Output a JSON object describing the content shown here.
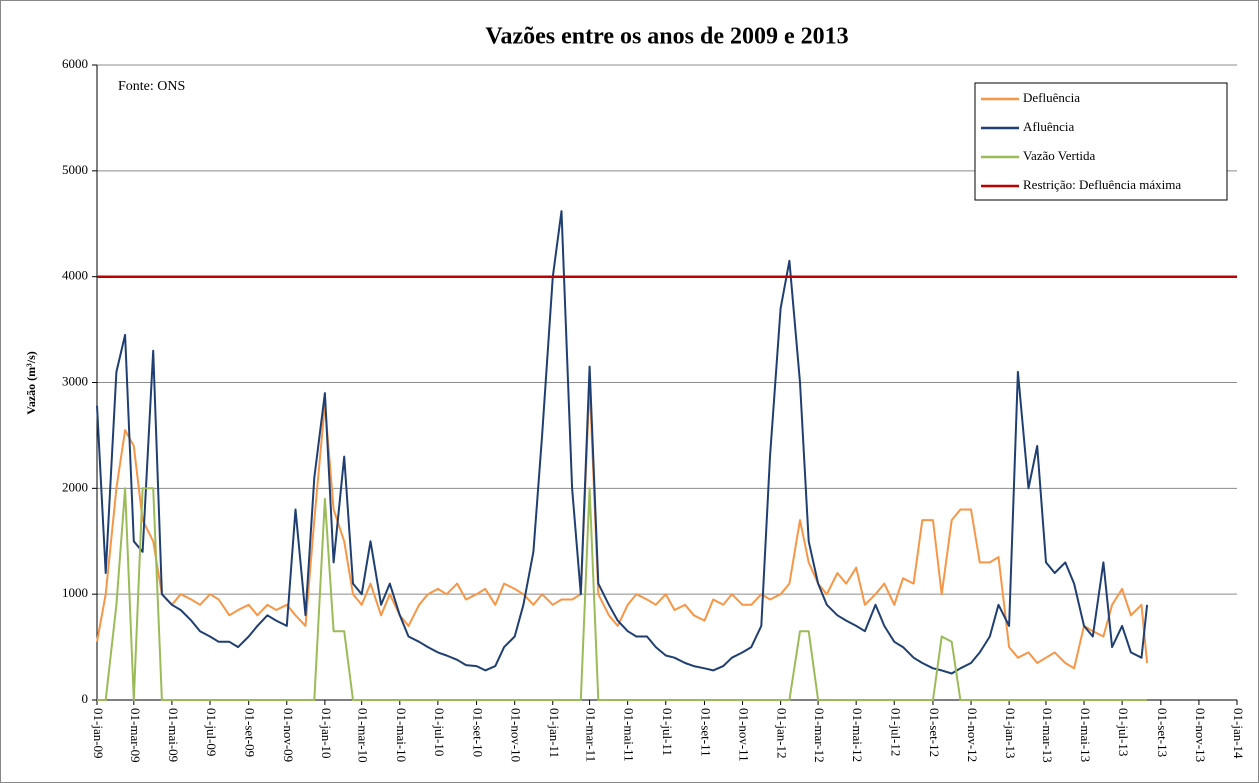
{
  "chart_data": {
    "type": "line",
    "title": "Vazões entre os anos de 2009 e 2013",
    "ylabel": "Vazão (m³/s)",
    "annotation": "Fonte: ONS",
    "ylim": [
      0,
      6000
    ],
    "yticks": [
      0,
      1000,
      2000,
      3000,
      4000,
      5000,
      6000
    ],
    "grid": true,
    "legend": "upper right",
    "xlim": [
      "2009-01-01",
      "2014-01-01"
    ],
    "xticks": [
      {
        "value": "2009-01-01",
        "label": "01-jan-09"
      },
      {
        "value": "2009-03-01",
        "label": "01-mar-09"
      },
      {
        "value": "2009-05-01",
        "label": "01-mai-09"
      },
      {
        "value": "2009-07-01",
        "label": "01-jul-09"
      },
      {
        "value": "2009-09-01",
        "label": "01-set-09"
      },
      {
        "value": "2009-11-01",
        "label": "01-nov-09"
      },
      {
        "value": "2010-01-01",
        "label": "01-jan-10"
      },
      {
        "value": "2010-03-01",
        "label": "01-mar-10"
      },
      {
        "value": "2010-05-01",
        "label": "01-mai-10"
      },
      {
        "value": "2010-07-01",
        "label": "01-jul-10"
      },
      {
        "value": "2010-09-01",
        "label": "01-set-10"
      },
      {
        "value": "2010-11-01",
        "label": "01-nov-10"
      },
      {
        "value": "2011-01-01",
        "label": "01-jan-11"
      },
      {
        "value": "2011-03-01",
        "label": "01-mar-11"
      },
      {
        "value": "2011-05-01",
        "label": "01-mai-11"
      },
      {
        "value": "2011-07-01",
        "label": "01-jul-11"
      },
      {
        "value": "2011-09-01",
        "label": "01-set-11"
      },
      {
        "value": "2011-11-01",
        "label": "01-nov-11"
      },
      {
        "value": "2012-01-01",
        "label": "01-jan-12"
      },
      {
        "value": "2012-03-01",
        "label": "01-mar-12"
      },
      {
        "value": "2012-05-01",
        "label": "01-mai-12"
      },
      {
        "value": "2012-07-01",
        "label": "01-jul-12"
      },
      {
        "value": "2012-09-01",
        "label": "01-set-12"
      },
      {
        "value": "2012-11-01",
        "label": "01-nov-12"
      },
      {
        "value": "2013-01-01",
        "label": "01-jan-13"
      },
      {
        "value": "2013-03-01",
        "label": "01-mar-13"
      },
      {
        "value": "2013-05-01",
        "label": "01-mai-13"
      },
      {
        "value": "2013-07-01",
        "label": "01-jul-13"
      },
      {
        "value": "2013-09-01",
        "label": "01-set-13"
      },
      {
        "value": "2013-11-01",
        "label": "01-nov-13"
      },
      {
        "value": "2014-01-01",
        "label": "01-jan-14"
      }
    ],
    "x": [
      "2009-01-01",
      "2009-01-15",
      "2009-02-01",
      "2009-02-15",
      "2009-03-01",
      "2009-03-15",
      "2009-04-01",
      "2009-04-15",
      "2009-05-01",
      "2009-05-15",
      "2009-06-01",
      "2009-06-15",
      "2009-07-01",
      "2009-07-15",
      "2009-08-01",
      "2009-08-15",
      "2009-09-01",
      "2009-09-15",
      "2009-10-01",
      "2009-10-15",
      "2009-11-01",
      "2009-11-15",
      "2009-12-01",
      "2009-12-15",
      "2010-01-01",
      "2010-01-15",
      "2010-02-01",
      "2010-02-15",
      "2010-03-01",
      "2010-03-15",
      "2010-04-01",
      "2010-04-15",
      "2010-05-01",
      "2010-05-15",
      "2010-06-01",
      "2010-06-15",
      "2010-07-01",
      "2010-07-15",
      "2010-08-01",
      "2010-08-15",
      "2010-09-01",
      "2010-09-15",
      "2010-10-01",
      "2010-10-15",
      "2010-11-01",
      "2010-11-15",
      "2010-12-01",
      "2010-12-15",
      "2011-01-01",
      "2011-01-15",
      "2011-02-01",
      "2011-02-15",
      "2011-03-01",
      "2011-03-15",
      "2011-04-01",
      "2011-04-15",
      "2011-05-01",
      "2011-05-15",
      "2011-06-01",
      "2011-06-15",
      "2011-07-01",
      "2011-07-15",
      "2011-08-01",
      "2011-08-15",
      "2011-09-01",
      "2011-09-15",
      "2011-10-01",
      "2011-10-15",
      "2011-11-01",
      "2011-11-15",
      "2011-12-01",
      "2011-12-15",
      "2012-01-01",
      "2012-01-15",
      "2012-02-01",
      "2012-02-15",
      "2012-03-01",
      "2012-03-15",
      "2012-04-01",
      "2012-04-15",
      "2012-05-01",
      "2012-05-15",
      "2012-06-01",
      "2012-06-15",
      "2012-07-01",
      "2012-07-15",
      "2012-08-01",
      "2012-08-15",
      "2012-09-01",
      "2012-09-15",
      "2012-10-01",
      "2012-10-15",
      "2012-11-01",
      "2012-11-15",
      "2012-12-01",
      "2012-12-15",
      "2013-01-01",
      "2013-01-15",
      "2013-02-01",
      "2013-02-15",
      "2013-03-01",
      "2013-03-15",
      "2013-04-01",
      "2013-04-15",
      "2013-05-01",
      "2013-05-15",
      "2013-06-01",
      "2013-06-15",
      "2013-07-01",
      "2013-07-15",
      "2013-08-01",
      "2013-08-10"
    ],
    "series": [
      {
        "name": "Defluência",
        "color": "#f79646",
        "values": [
          550,
          1000,
          2000,
          2550,
          2400,
          1700,
          1500,
          1000,
          900,
          1000,
          950,
          900,
          1000,
          950,
          800,
          850,
          900,
          800,
          900,
          850,
          900,
          800,
          700,
          1700,
          2800,
          1800,
          1500,
          1000,
          900,
          1100,
          800,
          1000,
          800,
          700,
          900,
          1000,
          1050,
          1000,
          1100,
          950,
          1000,
          1050,
          900,
          1100,
          1050,
          1000,
          900,
          1000,
          900,
          950,
          950,
          1000,
          3000,
          1000,
          800,
          700,
          900,
          1000,
          950,
          900,
          1000,
          850,
          900,
          800,
          750,
          950,
          900,
          1000,
          900,
          900,
          1000,
          950,
          1000,
          1100,
          1700,
          1300,
          1100,
          1000,
          1200,
          1100,
          1250,
          900,
          1000,
          1100,
          900,
          1150,
          1100,
          1700,
          1700,
          1000,
          1700,
          1800,
          1800,
          1300,
          1300,
          1350,
          500,
          400,
          450,
          350,
          400,
          450,
          350,
          300,
          700,
          650,
          600,
          900,
          1050,
          800,
          900,
          350
        ]
      },
      {
        "name": "Afluência",
        "color": "#1f3f73",
        "values": [
          2780,
          1200,
          3100,
          3450,
          1500,
          1400,
          3300,
          1000,
          900,
          850,
          750,
          650,
          600,
          550,
          550,
          500,
          600,
          700,
          800,
          750,
          700,
          1800,
          800,
          2100,
          2900,
          1300,
          2300,
          1100,
          1000,
          1500,
          900,
          1100,
          800,
          600,
          550,
          500,
          450,
          420,
          380,
          330,
          320,
          280,
          320,
          500,
          600,
          900,
          1400,
          2500,
          4000,
          4620,
          2000,
          1000,
          3150,
          1100,
          900,
          750,
          650,
          600,
          600,
          500,
          420,
          400,
          350,
          320,
          300,
          280,
          320,
          400,
          450,
          500,
          700,
          2300,
          3700,
          4150,
          3000,
          1500,
          1100,
          900,
          800,
          750,
          700,
          650,
          900,
          700,
          550,
          500,
          400,
          350,
          300,
          280,
          250,
          300,
          350,
          450,
          600,
          900,
          700,
          3100,
          2000,
          2400,
          1300,
          1200,
          1300,
          1100,
          700,
          600,
          1300,
          500,
          700,
          450,
          400,
          900
        ]
      },
      {
        "name": "Vazão Vertida",
        "color": "#9bbb59",
        "values": [
          0,
          0,
          900,
          2000,
          0,
          2000,
          2000,
          0,
          0,
          0,
          0,
          0,
          0,
          0,
          0,
          0,
          0,
          0,
          0,
          0,
          0,
          0,
          0,
          0,
          1900,
          650,
          650,
          0,
          0,
          0,
          0,
          0,
          0,
          0,
          0,
          0,
          0,
          0,
          0,
          0,
          0,
          0,
          0,
          0,
          0,
          0,
          0,
          0,
          0,
          0,
          0,
          0,
          2000,
          0,
          0,
          0,
          0,
          0,
          0,
          0,
          0,
          0,
          0,
          0,
          0,
          0,
          0,
          0,
          0,
          0,
          0,
          0,
          0,
          0,
          650,
          650,
          0,
          0,
          0,
          0,
          0,
          0,
          0,
          0,
          0,
          0,
          0,
          0,
          0,
          600,
          550,
          0,
          0,
          0,
          0,
          0,
          0,
          0,
          0,
          0,
          0,
          0,
          0,
          0,
          0,
          0,
          0,
          0,
          0,
          0,
          0,
          0
        ]
      },
      {
        "name": "Restrição: Defluência máxima",
        "color": "#c00000",
        "x": [
          "2009-01-01",
          "2014-01-01"
        ],
        "values": [
          4000,
          4000
        ]
      }
    ]
  }
}
